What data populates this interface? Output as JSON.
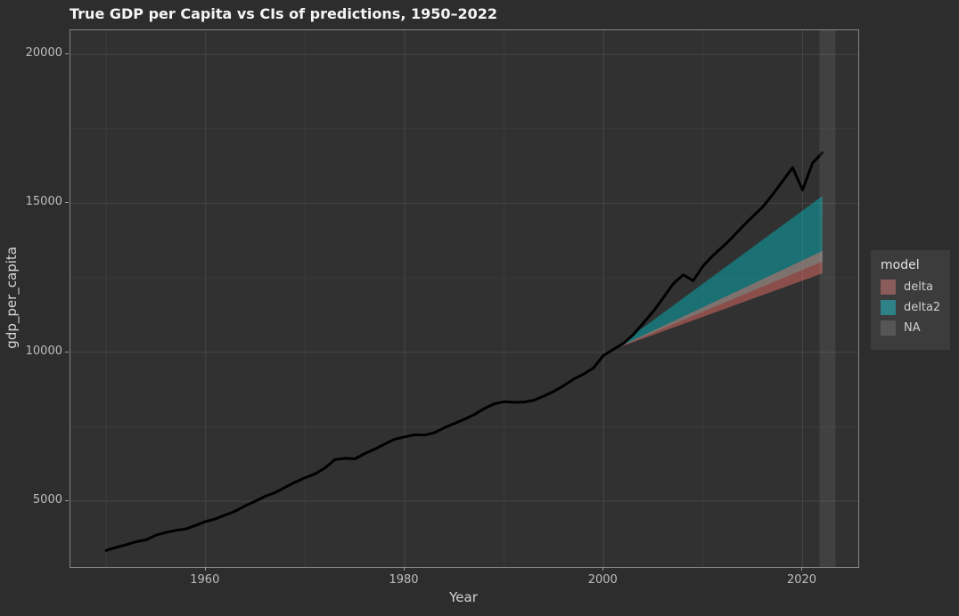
{
  "page": {
    "background": "#2d2d2d"
  },
  "title": "True GDP per Capita vs CIs of predictions, 1950–2022",
  "chart_data": {
    "type": "line",
    "title": "True GDP per Capita vs CIs of predictions, 1950–2022",
    "xlabel": "Year",
    "ylabel": "gdp_per_capita",
    "xlim": [
      1946.4,
      2025.6
    ],
    "ylim": [
      2790,
      20810
    ],
    "x_ticks": [
      1960,
      1980,
      2000,
      2020
    ],
    "x_minor_ticks": [
      1950,
      1970,
      1990,
      2010
    ],
    "y_ticks": [
      5000,
      10000,
      15000,
      20000
    ],
    "y_minor_ticks": [
      7500,
      12500,
      17500
    ],
    "grid": true,
    "panel_bg": "#313131",
    "grid_major_color": "#454545",
    "grid_minor_color": "#3b3b3b",
    "series": [
      {
        "name": "true_gdp_per_capita",
        "color": "#000000",
        "width": 3,
        "x": [
          1950,
          1951,
          1952,
          1953,
          1954,
          1955,
          1956,
          1957,
          1958,
          1959,
          1960,
          1961,
          1962,
          1963,
          1964,
          1965,
          1966,
          1967,
          1968,
          1969,
          1970,
          1971,
          1972,
          1973,
          1974,
          1975,
          1976,
          1977,
          1978,
          1979,
          1980,
          1981,
          1982,
          1983,
          1984,
          1985,
          1986,
          1987,
          1988,
          1989,
          1990,
          1991,
          1992,
          1993,
          1994,
          1995,
          1996,
          1997,
          1998,
          1999,
          2000,
          2001,
          2002,
          2003,
          2004,
          2005,
          2006,
          2007,
          2008,
          2009,
          2010,
          2011,
          2012,
          2013,
          2014,
          2015,
          2016,
          2017,
          2018,
          2019,
          2020,
          2021,
          2022
        ],
        "y": [
          3350,
          3450,
          3540,
          3640,
          3700,
          3860,
          3950,
          4020,
          4070,
          4190,
          4320,
          4410,
          4540,
          4670,
          4850,
          5000,
          5170,
          5290,
          5470,
          5640,
          5790,
          5920,
          6120,
          6400,
          6440,
          6420,
          6600,
          6750,
          6920,
          7080,
          7160,
          7230,
          7220,
          7300,
          7470,
          7610,
          7750,
          7910,
          8110,
          8270,
          8340,
          8320,
          8330,
          8390,
          8530,
          8690,
          8880,
          9100,
          9270,
          9480,
          9900,
          10100,
          10300,
          10600,
          10980,
          11380,
          11830,
          12300,
          12600,
          12400,
          12900,
          13250,
          13550,
          13880,
          14230,
          14560,
          14880,
          15300,
          15750,
          16200,
          15450,
          16350,
          16700
        ]
      }
    ],
    "ribbons": [
      {
        "name": "delta2",
        "color": "#00BFC4",
        "opacity": 0.45,
        "x": [
          2001,
          2022
        ],
        "lower": [
          10100,
          13050
        ],
        "upper": [
          10100,
          15250
        ]
      },
      {
        "name": "delta",
        "color": "#F8766D",
        "opacity": 0.45,
        "x": [
          2001,
          2022
        ],
        "lower": [
          10100,
          12650
        ],
        "upper": [
          10100,
          13400
        ]
      },
      {
        "name": "NA",
        "color": "#b5b5b5",
        "opacity": 0.12,
        "band_x": [
          2021.7,
          2023.3
        ]
      }
    ],
    "legend": {
      "title": "model",
      "position": "right",
      "entries": [
        {
          "label": "delta",
          "color": "#8a5c5a"
        },
        {
          "label": "delta2",
          "color": "#2d8187"
        },
        {
          "label": "NA",
          "color": "#565656"
        }
      ]
    }
  }
}
